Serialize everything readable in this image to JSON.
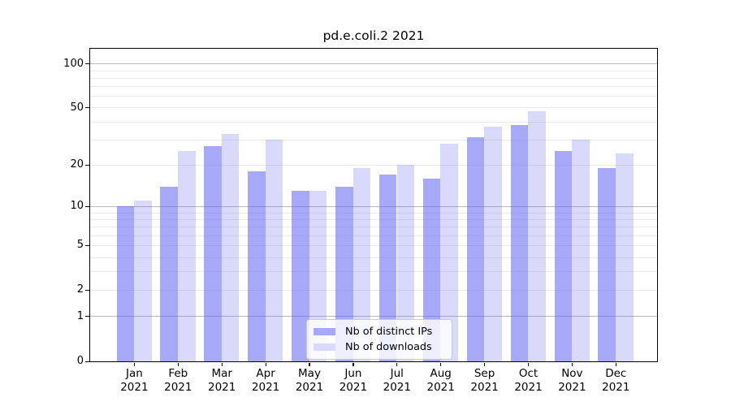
{
  "chart_data": {
    "type": "bar",
    "title": "pd.e.coli.2 2021",
    "categories": [
      "Jan",
      "Feb",
      "Mar",
      "Apr",
      "May",
      "Jun",
      "Jul",
      "Aug",
      "Sep",
      "Oct",
      "Nov",
      "Dec"
    ],
    "year_label": "2021",
    "series": [
      {
        "name": "Nb of distinct IPs",
        "color": "rgba(97,97,244,0.55)",
        "swatch": "#a8a8f9",
        "values": [
          10,
          14,
          27,
          18,
          13,
          14,
          17,
          16,
          31,
          38,
          25,
          19
        ]
      },
      {
        "name": "Nb of downloads",
        "color": "rgba(97,97,244,0.24)",
        "swatch": "#d9dafb",
        "values": [
          11,
          25,
          33,
          30,
          13,
          19,
          20,
          28,
          37,
          47,
          30,
          24
        ]
      }
    ],
    "yscale": "symlog-ln(1+x)",
    "ylim": [
      0,
      128
    ],
    "ytick_labels": [
      100,
      50,
      20,
      10,
      5,
      2,
      1,
      0
    ],
    "gridlines": {
      "major": [
        1,
        10,
        100
      ],
      "minor": [
        2,
        3,
        4,
        5,
        6,
        7,
        8,
        9,
        20,
        30,
        40,
        50,
        60,
        70,
        80,
        90
      ]
    },
    "grid": "on",
    "legend_position": "lower center"
  },
  "colors": {
    "axis": "#000000",
    "grid_major": "#b8b8b8",
    "grid_minor": "#ececec",
    "legend_border": "#cccccc"
  }
}
